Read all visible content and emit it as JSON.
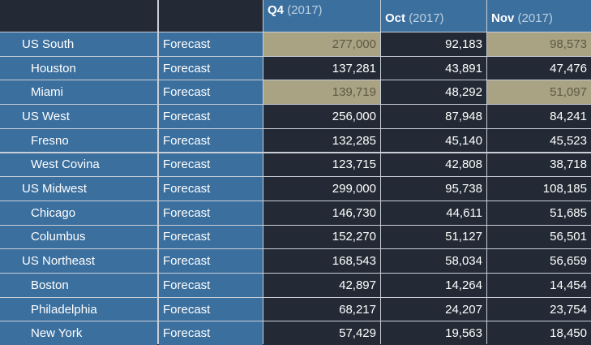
{
  "columns": [
    {
      "label": "Q4",
      "year": "(2017)"
    },
    {
      "label": "Oct",
      "year": "(2017)"
    },
    {
      "label": "Nov",
      "year": "(2017)"
    }
  ],
  "rows": [
    {
      "name": "US South",
      "level": 0,
      "measure": "Forecast",
      "values": [
        "277,000",
        "92,183",
        "98,573"
      ],
      "highlight": [
        true,
        false,
        true
      ]
    },
    {
      "name": "Houston",
      "level": 1,
      "measure": "Forecast",
      "values": [
        "137,281",
        "43,891",
        "47,476"
      ],
      "highlight": [
        false,
        false,
        false
      ]
    },
    {
      "name": "Miami",
      "level": 1,
      "measure": "Forecast",
      "values": [
        "139,719",
        "48,292",
        "51,097"
      ],
      "highlight": [
        true,
        false,
        true
      ]
    },
    {
      "name": "US West",
      "level": 0,
      "measure": "Forecast",
      "values": [
        "256,000",
        "87,948",
        "84,241"
      ],
      "highlight": [
        false,
        false,
        false
      ]
    },
    {
      "name": "Fresno",
      "level": 1,
      "measure": "Forecast",
      "values": [
        "132,285",
        "45,140",
        "45,523"
      ],
      "highlight": [
        false,
        false,
        false
      ]
    },
    {
      "name": "West Covina",
      "level": 1,
      "measure": "Forecast",
      "values": [
        "123,715",
        "42,808",
        "38,718"
      ],
      "highlight": [
        false,
        false,
        false
      ]
    },
    {
      "name": "US Midwest",
      "level": 0,
      "measure": "Forecast",
      "values": [
        "299,000",
        "95,738",
        "108,185"
      ],
      "highlight": [
        false,
        false,
        false
      ]
    },
    {
      "name": "Chicago",
      "level": 1,
      "measure": "Forecast",
      "values": [
        "146,730",
        "44,611",
        "51,685"
      ],
      "highlight": [
        false,
        false,
        false
      ]
    },
    {
      "name": "Columbus",
      "level": 1,
      "measure": "Forecast",
      "values": [
        "152,270",
        "51,127",
        "56,501"
      ],
      "highlight": [
        false,
        false,
        false
      ]
    },
    {
      "name": "US Northeast",
      "level": 0,
      "measure": "Forecast",
      "values": [
        "168,543",
        "58,034",
        "56,659"
      ],
      "highlight": [
        false,
        false,
        false
      ]
    },
    {
      "name": "Boston",
      "level": 1,
      "measure": "Forecast",
      "values": [
        "42,897",
        "14,264",
        "14,454"
      ],
      "highlight": [
        false,
        false,
        false
      ]
    },
    {
      "name": "Philadelphia",
      "level": 1,
      "measure": "Forecast",
      "values": [
        "68,217",
        "24,207",
        "23,754"
      ],
      "highlight": [
        false,
        false,
        false
      ]
    },
    {
      "name": "New York",
      "level": 1,
      "measure": "Forecast",
      "values": [
        "57,429",
        "19,563",
        "18,450"
      ],
      "highlight": [
        false,
        false,
        false
      ]
    }
  ],
  "colors": {
    "header_blue": "#3b6f9e",
    "cell_dark": "#232a35",
    "highlight": "#a9a283",
    "gridline": "#c9ced6"
  }
}
